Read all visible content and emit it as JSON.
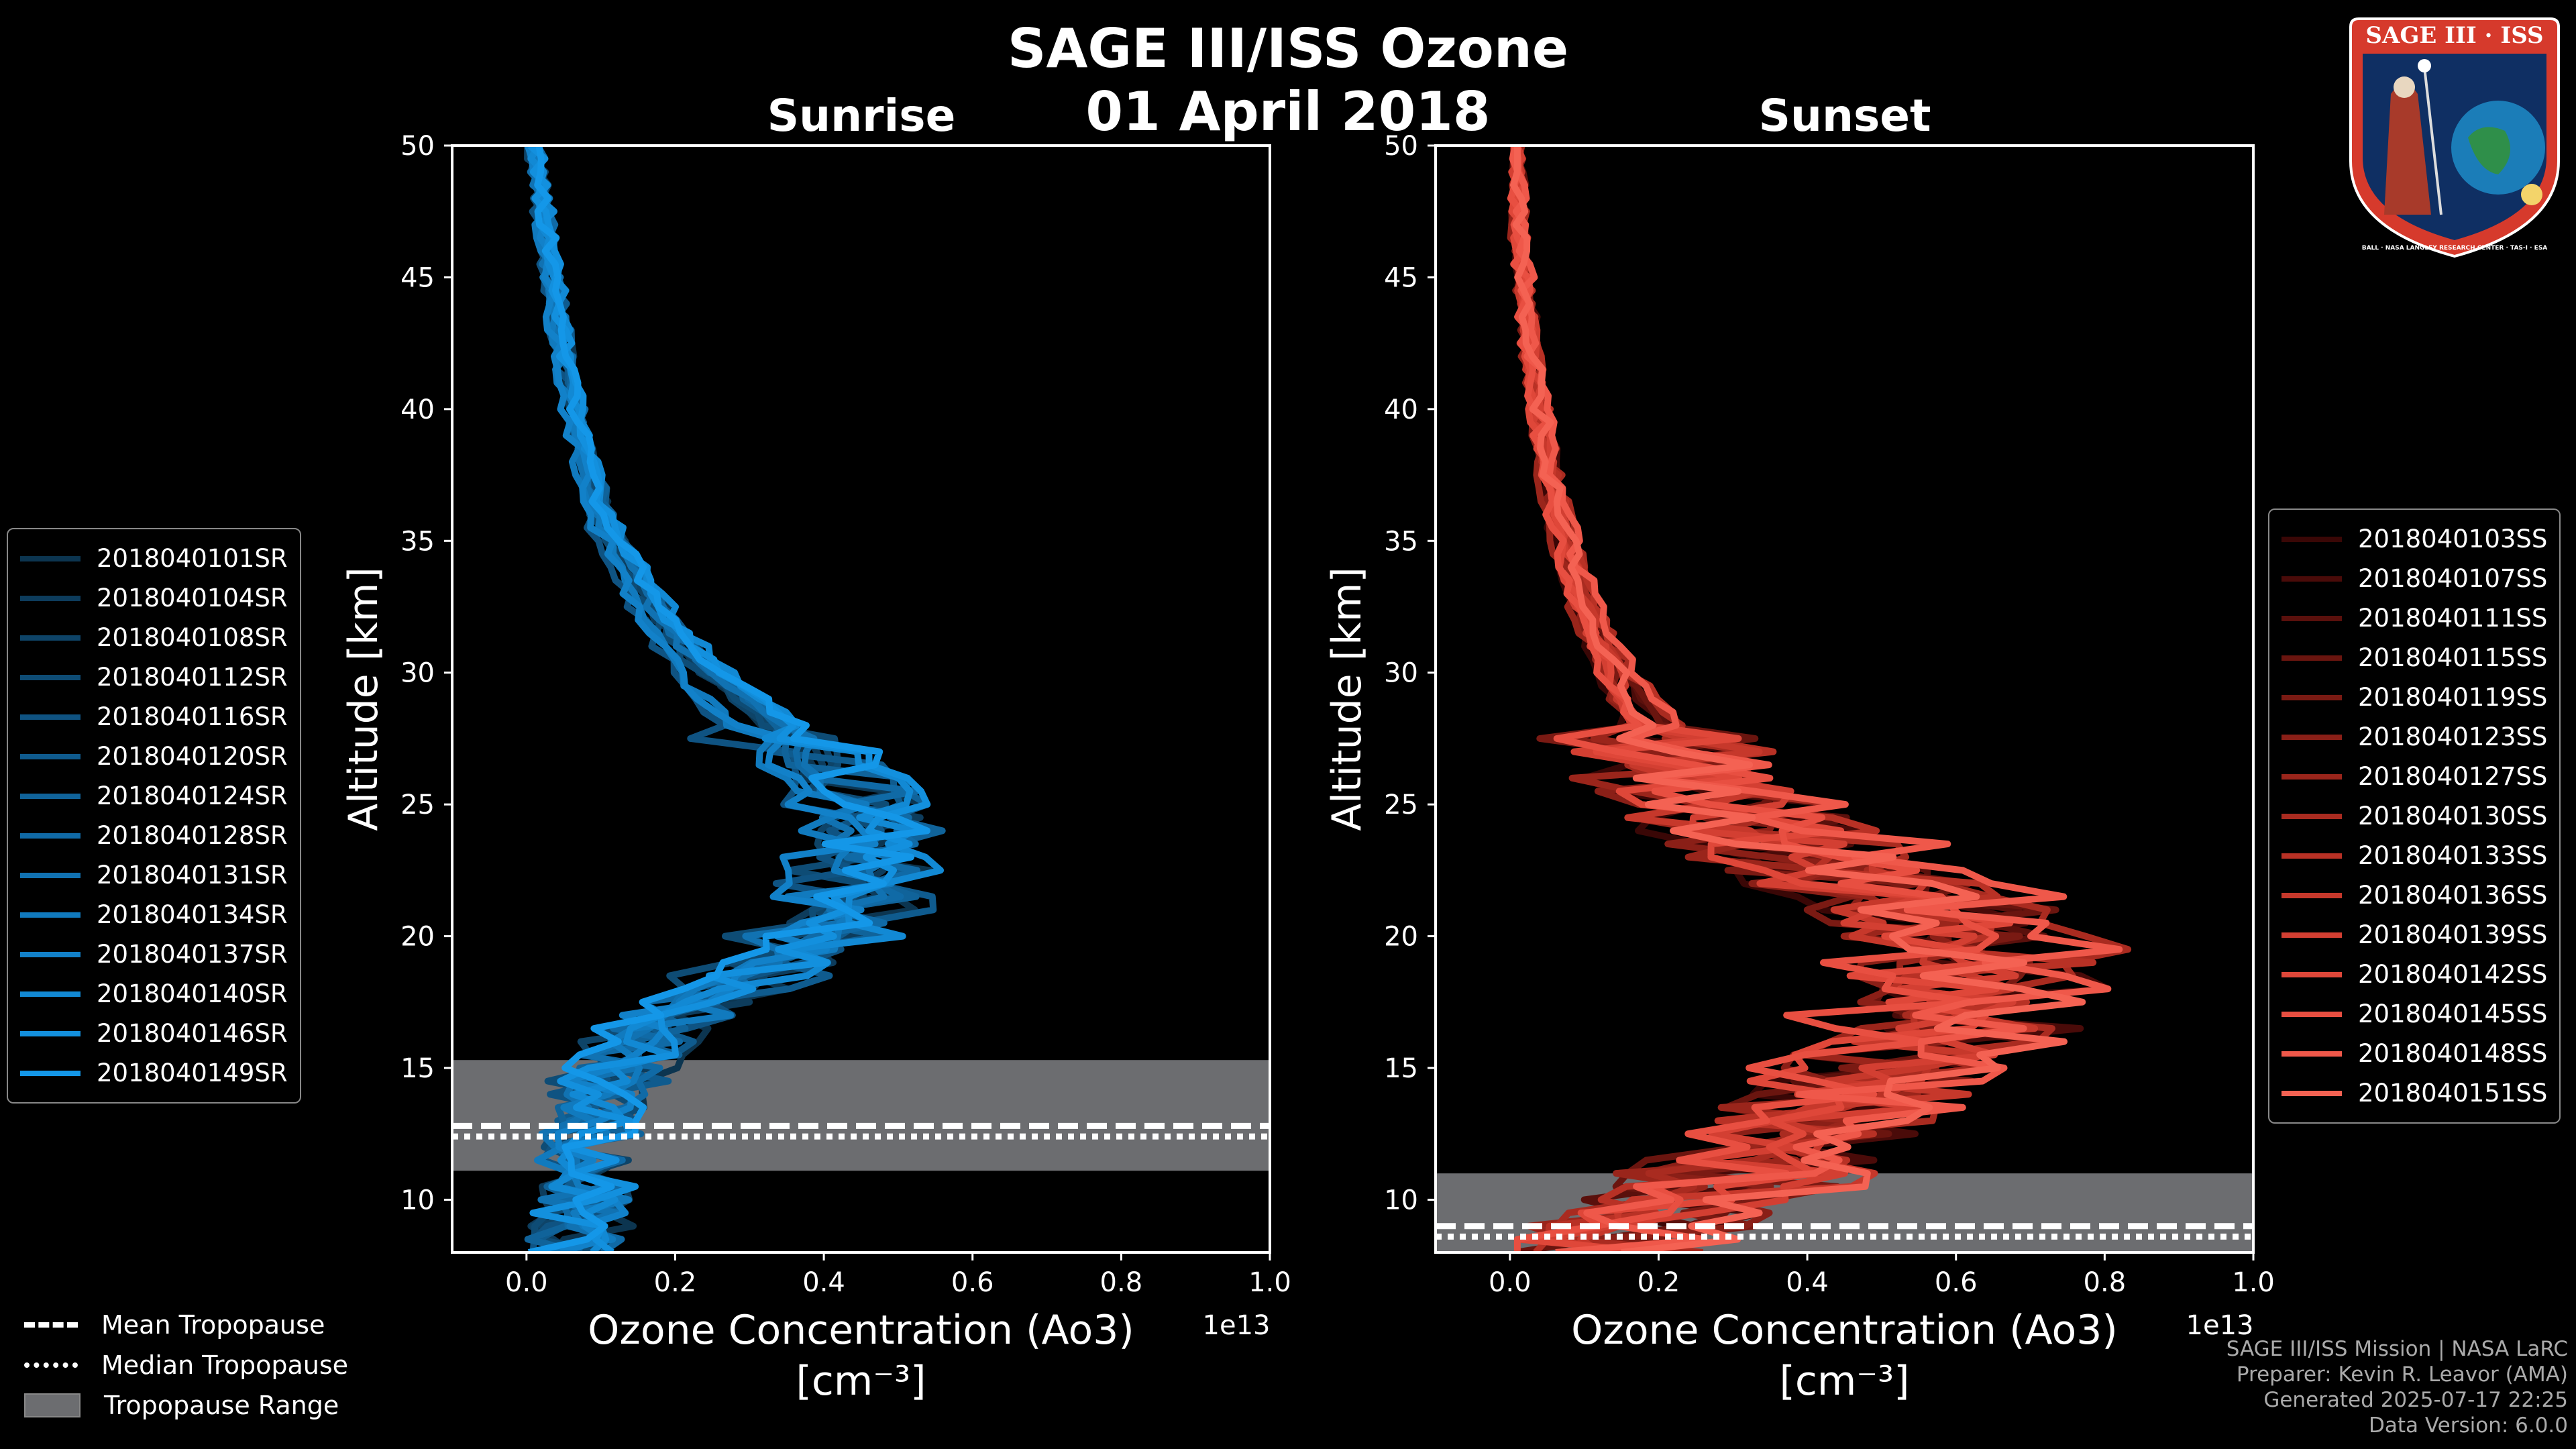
{
  "figure": {
    "title_line1": "SAGE III/ISS Ozone",
    "title_line2": "01 April 2018",
    "credits": [
      "SAGE III/ISS Mission | NASA LaRC",
      "Preparer: Kevin R. Leavor (AMA)",
      "Generated 2025-07-17 22:25",
      "Data Version: 6.0.0"
    ],
    "logo": {
      "title": "SAGE III · ISS",
      "ring_text": "BALL · NASA LANGLEY RESEARCH CENTER · TAS-I · ESA"
    }
  },
  "legend_common": [
    {
      "label": "Mean Tropopause",
      "style": "dashed"
    },
    {
      "label": "Median Tropopause",
      "style": "dotted"
    },
    {
      "label": "Tropopause Range",
      "style": "patch"
    }
  ],
  "chart_data": [
    {
      "type": "line",
      "title": "Sunrise",
      "xlabel": "Ozone Concentration (Ao3)",
      "xunit": "[cm⁻³]",
      "ylabel": "Altitude [km]",
      "xlim": [
        -0.1,
        1.0
      ],
      "ylim": [
        8,
        50
      ],
      "x_ticks": [
        0.0,
        0.2,
        0.4,
        0.6,
        0.8,
        1.0
      ],
      "x_tick_labels": [
        "0.0",
        "0.2",
        "0.4",
        "0.6",
        "0.8",
        "1.0"
      ],
      "y_ticks": [
        10,
        15,
        20,
        25,
        30,
        35,
        40,
        45,
        50
      ],
      "y_tick_labels": [
        "10",
        "15",
        "20",
        "25",
        "30",
        "35",
        "40",
        "45",
        "50"
      ],
      "offset_text": "1e13",
      "tropopause": {
        "mean": 12.8,
        "median": 12.4,
        "range": [
          11.1,
          15.3
        ]
      },
      "base_profile": {
        "alt": [
          8,
          9,
          10,
          11,
          12,
          13,
          14,
          15,
          16,
          17,
          18,
          19,
          20,
          21,
          22,
          23,
          24,
          25,
          26,
          27,
          28,
          29,
          30,
          31,
          32,
          33,
          34,
          35,
          36,
          37,
          38,
          40,
          42,
          44,
          46,
          48,
          50
        ],
        "conc": [
          0.06,
          0.07,
          0.08,
          0.07,
          0.08,
          0.09,
          0.1,
          0.12,
          0.15,
          0.2,
          0.27,
          0.34,
          0.4,
          0.43,
          0.45,
          0.46,
          0.46,
          0.45,
          0.42,
          0.37,
          0.32,
          0.28,
          0.24,
          0.21,
          0.18,
          0.16,
          0.14,
          0.12,
          0.1,
          0.09,
          0.08,
          0.065,
          0.05,
          0.04,
          0.03,
          0.02,
          0.01
        ]
      },
      "series": [
        {
          "name": "2018040101SR",
          "color": "#0c3550"
        },
        {
          "name": "2018040104SR",
          "color": "#0d3c5c"
        },
        {
          "name": "2018040108SR",
          "color": "#0e4468"
        },
        {
          "name": "2018040112SR",
          "color": "#0e4c75"
        },
        {
          "name": "2018040116SR",
          "color": "#0f5382"
        },
        {
          "name": "2018040120SR",
          "color": "#0f5b8e"
        },
        {
          "name": "2018040124SR",
          "color": "#10639a"
        },
        {
          "name": "2018040128SR",
          "color": "#106aa6"
        },
        {
          "name": "2018040131SR",
          "color": "#1172b2"
        },
        {
          "name": "2018040134SR",
          "color": "#117abe"
        },
        {
          "name": "2018040137SR",
          "color": "#1281c9"
        },
        {
          "name": "2018040140SR",
          "color": "#1289d4"
        },
        {
          "name": "2018040146SR",
          "color": "#1390de"
        },
        {
          "name": "2018040149SR",
          "color": "#1497e8"
        }
      ]
    },
    {
      "type": "line",
      "title": "Sunset",
      "xlabel": "Ozone Concentration (Ao3)",
      "xunit": "[cm⁻³]",
      "ylabel": "Altitude [km]",
      "xlim": [
        -0.1,
        1.0
      ],
      "ylim": [
        8,
        50
      ],
      "x_ticks": [
        0.0,
        0.2,
        0.4,
        0.6,
        0.8,
        1.0
      ],
      "x_tick_labels": [
        "0.0",
        "0.2",
        "0.4",
        "0.6",
        "0.8",
        "1.0"
      ],
      "y_ticks": [
        10,
        15,
        20,
        25,
        30,
        35,
        40,
        45,
        50
      ],
      "y_tick_labels": [
        "10",
        "15",
        "20",
        "25",
        "30",
        "35",
        "40",
        "45",
        "50"
      ],
      "offset_text": "1e13",
      "tropopause": {
        "mean": 9.0,
        "median": 8.6,
        "range": [
          8.0,
          11.0
        ]
      },
      "base_profile": {
        "alt": [
          8,
          9,
          10,
          11,
          12,
          13,
          14,
          15,
          16,
          17,
          18,
          19,
          20,
          21,
          22,
          23,
          24,
          25,
          26,
          27,
          28,
          29,
          30,
          31,
          32,
          33,
          34,
          35,
          36,
          37,
          38,
          40,
          42,
          44,
          46,
          48,
          50
        ],
        "conc": [
          0.12,
          0.18,
          0.25,
          0.32,
          0.38,
          0.44,
          0.48,
          0.52,
          0.56,
          0.6,
          0.62,
          0.64,
          0.62,
          0.56,
          0.48,
          0.4,
          0.34,
          0.29,
          0.25,
          0.22,
          0.19,
          0.165,
          0.145,
          0.125,
          0.11,
          0.095,
          0.085,
          0.075,
          0.065,
          0.058,
          0.05,
          0.04,
          0.03,
          0.022,
          0.015,
          0.01,
          0.005
        ]
      },
      "series": [
        {
          "name": "2018040103SS",
          "color": "#3a0706"
        },
        {
          "name": "2018040107SS",
          "color": "#4a0b09"
        },
        {
          "name": "2018040111SS",
          "color": "#5a100c"
        },
        {
          "name": "2018040115SS",
          "color": "#6a150f"
        },
        {
          "name": "2018040119SS",
          "color": "#7a1a13"
        },
        {
          "name": "2018040123SS",
          "color": "#8a1f17"
        },
        {
          "name": "2018040127SS",
          "color": "#9a251b"
        },
        {
          "name": "2018040130SS",
          "color": "#a92b20"
        },
        {
          "name": "2018040133SS",
          "color": "#b83125"
        },
        {
          "name": "2018040136SS",
          "color": "#c6382b"
        },
        {
          "name": "2018040139SS",
          "color": "#d33f32"
        },
        {
          "name": "2018040142SS",
          "color": "#df4739"
        },
        {
          "name": "2018040145SS",
          "color": "#e84f41"
        },
        {
          "name": "2018040148SS",
          "color": "#ef584a"
        },
        {
          "name": "2018040151SS",
          "color": "#f46253"
        }
      ]
    }
  ]
}
